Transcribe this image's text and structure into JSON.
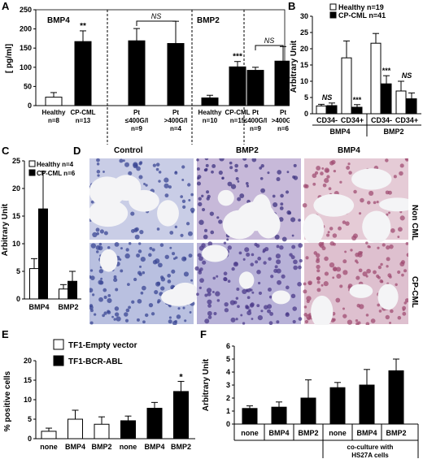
{
  "panels": {
    "A": "A",
    "B": "B",
    "C": "C",
    "D": "D",
    "E": "E",
    "F": "F"
  },
  "colors": {
    "bar_black": "#000000",
    "bar_white": "#ffffff",
    "stain_blue": "#6b76b8",
    "stain_pink": "#d9a3b6"
  },
  "chart_data": [
    {
      "id": "A",
      "type": "bar",
      "ylabel": "[ pg/ml]",
      "ylim": [
        0,
        250
      ],
      "yticks": [
        0,
        50,
        100,
        150,
        200,
        250
      ],
      "groups": [
        {
          "title": "BMP4",
          "bars": [
            {
              "label": [
                "Healthy",
                "n=8"
              ],
              "value": 22,
              "error": 12,
              "fill": "white"
            },
            {
              "label": [
                "CP-CML",
                "n=13"
              ],
              "value": 167,
              "error": 28,
              "fill": "black",
              "sig": "**"
            }
          ]
        },
        {
          "title": "",
          "bars": [
            {
              "label": [
                "Pt",
                "≤400G/l",
                "n=9"
              ],
              "value": 169,
              "error": 32,
              "fill": "black"
            },
            {
              "label": [
                "Pt",
                ">400G/l",
                "n=4"
              ],
              "value": 162,
              "error": 58,
              "fill": "black"
            }
          ],
          "bracket": "NS"
        },
        {
          "title": "BMP2",
          "bars": [
            {
              "label": [
                "Healthy",
                "n=10"
              ],
              "value": 20,
              "error": 7,
              "fill": "black"
            },
            {
              "label": [
                "CP-CML",
                "n=15"
              ],
              "value": 101,
              "error": 14,
              "fill": "black",
              "sig": "***"
            }
          ]
        },
        {
          "title": "",
          "bars": [
            {
              "label": [
                "Pt",
                "≤400G/l",
                "n=9"
              ],
              "value": 92,
              "error": 8,
              "fill": "black"
            },
            {
              "label": [
                "Pt",
                ">400G/l",
                "n=6"
              ],
              "value": 116,
              "error": 38,
              "fill": "black"
            }
          ],
          "bracket": "NS"
        }
      ]
    },
    {
      "id": "B",
      "type": "bar",
      "ylabel": "Arbitrary Unit",
      "ylim": [
        0,
        30
      ],
      "yticks": [
        0,
        5,
        10,
        15,
        20,
        25,
        30
      ],
      "legend": [
        "Healthy n=19",
        "CP-CML n=41"
      ],
      "categories": [
        "CD34-",
        "CD34+",
        "CD34-",
        "CD34+"
      ],
      "groups": [
        "BMP4",
        "BMP2"
      ],
      "series": [
        {
          "name": "Healthy n=19",
          "values": [
            2.4,
            17.2,
            21.7,
            7.0
          ],
          "errors": [
            0.5,
            5.2,
            3.0,
            3.0
          ]
        },
        {
          "name": "CP-CML n=41",
          "values": [
            2.5,
            2.0,
            9.2,
            4.6
          ],
          "errors": [
            0.8,
            0.8,
            2.5,
            1.8
          ]
        }
      ],
      "annotations": [
        "NS",
        "***",
        "***",
        "NS"
      ]
    },
    {
      "id": "C",
      "type": "bar",
      "ylabel": "Arbitrary Unit",
      "ylim": [
        0,
        25
      ],
      "yticks": [
        0,
        5,
        10,
        15,
        20,
        25
      ],
      "legend": [
        "Healthy n=4",
        "CP-CML n=6"
      ],
      "categories": [
        "BMP4",
        "BMP2"
      ],
      "series": [
        {
          "name": "Healthy n=4",
          "values": [
            5.5,
            1.8
          ],
          "errors": [
            1.8,
            0.8
          ]
        },
        {
          "name": "CP-CML n=6",
          "values": [
            16.3,
            3.2
          ],
          "errors": [
            6.8,
            1.8
          ]
        }
      ]
    },
    {
      "id": "E",
      "type": "bar",
      "ylabel": "% positive cells",
      "ylim": [
        0,
        20
      ],
      "yticks": [
        0,
        5,
        10,
        15,
        20
      ],
      "legend": [
        "TF1-Empty vector",
        "TF1-BCR-ABL"
      ],
      "categories": [
        "none",
        "BMP4",
        "BMP2",
        "none",
        "BMP4",
        "BMP2"
      ],
      "values": [
        1.9,
        5.0,
        3.7,
        4.6,
        7.8,
        12.1
      ],
      "errors": [
        0.8,
        2.3,
        1.9,
        1.2,
        1.5,
        2.6
      ],
      "fills": [
        "white",
        "white",
        "white",
        "black",
        "black",
        "black"
      ],
      "annotations": [
        "",
        "",
        "",
        "",
        "",
        "*"
      ]
    },
    {
      "id": "F",
      "type": "bar",
      "ylabel": "Arbitrary Unit",
      "ylim": [
        0,
        6
      ],
      "yticks": [
        0,
        1,
        2,
        3,
        4,
        5,
        6
      ],
      "categories": [
        "none",
        "BMP4",
        "BMP2",
        "none",
        "BMP4",
        "BMP2"
      ],
      "values": [
        1.2,
        1.3,
        2.0,
        2.8,
        3.0,
        4.1
      ],
      "errors": [
        0.2,
        0.4,
        1.4,
        0.4,
        1.2,
        0.9
      ],
      "footnote": [
        "co-culture with",
        "HS27A cells"
      ]
    }
  ],
  "histology": {
    "columns": [
      "Control",
      "BMP2",
      "BMP4"
    ],
    "rows": [
      "Non CML",
      "CP-CML"
    ]
  }
}
